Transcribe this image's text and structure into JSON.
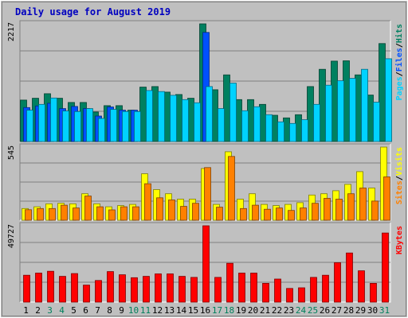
{
  "chart_data": {
    "type": "bar",
    "title": "Daily usage for August 2019",
    "days": [
      "1",
      "2",
      "3",
      "4",
      "5",
      "6",
      "7",
      "8",
      "9",
      "10",
      "11",
      "12",
      "13",
      "14",
      "15",
      "16",
      "17",
      "18",
      "19",
      "20",
      "21",
      "22",
      "23",
      "24",
      "25",
      "26",
      "27",
      "28",
      "29",
      "30",
      "31"
    ],
    "weekend_days": [
      "3",
      "4",
      "10",
      "11",
      "17",
      "18",
      "24",
      "25",
      "31"
    ],
    "panels": [
      {
        "id": "hits",
        "max_label": "2217",
        "ylim": [
          0,
          2217
        ],
        "legend": [
          {
            "text": "Pages",
            "color": "#00d2ff"
          },
          {
            "text": "/",
            "color": "#000000"
          },
          {
            "text": "Files",
            "color": "#0050ff"
          },
          {
            "text": "/",
            "color": "#000000"
          },
          {
            "text": "Hits",
            "color": "#008060"
          }
        ],
        "series": [
          {
            "name": "Hits",
            "color": "#008060",
            "values": [
              780,
              815,
              900,
              815,
              735,
              735,
              555,
              675,
              675,
              590,
              1025,
              1035,
              930,
              885,
              815,
              2217,
              975,
              1255,
              790,
              790,
              700,
              495,
              445,
              505,
              1035,
              1360,
              1515,
              1520,
              1255,
              875,
              1845
            ]
          },
          {
            "name": "Files",
            "color": "#0050ff",
            "values": [
              640,
              670,
              720,
              620,
              660,
              620,
              480,
              650,
              590,
              590,
              0,
              0,
              0,
              0,
              0,
              2055,
              0,
              0,
              0,
              0,
              0,
              0,
              0,
              0,
              0,
              0,
              0,
              0,
              0,
              0,
              0
            ]
          },
          {
            "name": "Pages",
            "color": "#00d2ff",
            "values": [
              590,
              700,
              820,
              575,
              565,
              620,
              435,
              605,
              565,
              565,
              960,
              940,
              870,
              790,
              730,
              1035,
              620,
              1100,
              580,
              655,
              505,
              370,
              340,
              410,
              700,
              1060,
              1145,
              1190,
              1360,
              740,
              1560
            ]
          }
        ]
      },
      {
        "id": "visits",
        "max_label": "545",
        "ylim": [
          0,
          545
        ],
        "legend": [
          {
            "text": "Sites",
            "color": "#ff8000"
          },
          {
            "text": "/",
            "color": "#000000"
          },
          {
            "text": "Visits",
            "color": "#ffff00"
          }
        ],
        "series": [
          {
            "name": "Visits",
            "color": "#ffff00",
            "values": [
              87,
              100,
              122,
              126,
              122,
              197,
              122,
              100,
              109,
              118,
              346,
              228,
              197,
              157,
              157,
              385,
              118,
              510,
              157,
              197,
              118,
              109,
              118,
              131,
              188,
              197,
              220,
              267,
              362,
              240,
              545
            ]
          },
          {
            "name": "Sites",
            "color": "#ff8000",
            "values": [
              78,
              87,
              87,
              112,
              91,
              180,
              100,
              77,
              100,
              100,
              272,
              167,
              151,
              103,
              126,
              392,
              97,
              475,
              87,
              112,
              82,
              91,
              73,
              91,
              126,
              163,
              157,
              197,
              240,
              143,
              323
            ]
          }
        ]
      },
      {
        "id": "kbytes",
        "max_label": "49727",
        "ylim": [
          0,
          49727
        ],
        "legend": [
          {
            "text": "KBytes",
            "color": "#ff0000"
          }
        ],
        "series": [
          {
            "name": "KBytes",
            "color": "#ff0000",
            "values": [
              17500,
              18900,
              20100,
              16800,
              18600,
              11100,
              14100,
              19900,
              17800,
              15900,
              16800,
              18400,
              18400,
              16800,
              16100,
              49727,
              16100,
              25300,
              18900,
              18900,
              12200,
              15000,
              8900,
              9300,
              16100,
              17500,
              25700,
              32000,
              20400,
              12200,
              45000
            ]
          }
        ]
      }
    ]
  }
}
